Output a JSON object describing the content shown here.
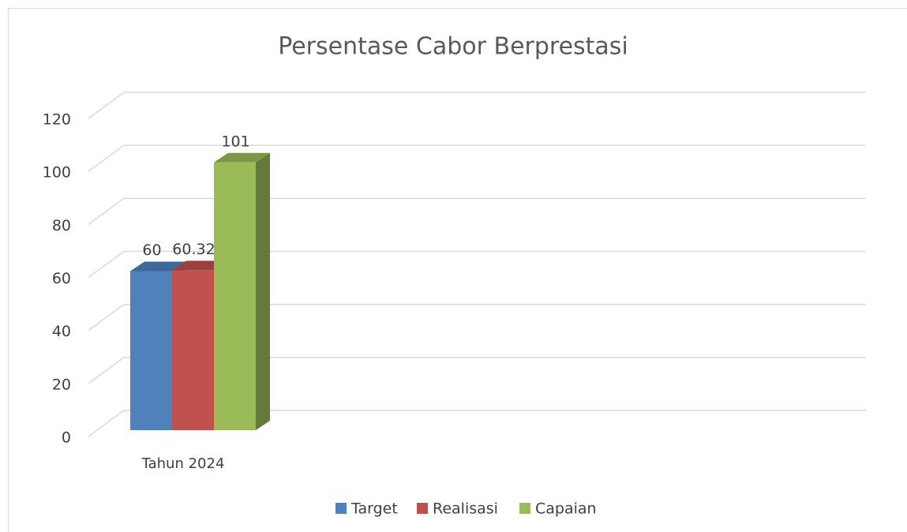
{
  "chart_data": {
    "type": "bar3d",
    "title": "Persentase Cabor Berprestasi",
    "categories": [
      "Tahun 2024"
    ],
    "series": [
      {
        "name": "Target",
        "color": "#4f81bd",
        "values": [
          60
        ]
      },
      {
        "name": "Realisasi",
        "color": "#c0504d",
        "values": [
          60.32
        ]
      },
      {
        "name": "Capaian",
        "color": "#9bbb59",
        "values": [
          101
        ]
      }
    ],
    "ylim": [
      0,
      120
    ],
    "yticks": [
      0,
      20,
      40,
      60,
      80,
      100,
      120
    ],
    "grid": true,
    "legend": "bottom"
  }
}
